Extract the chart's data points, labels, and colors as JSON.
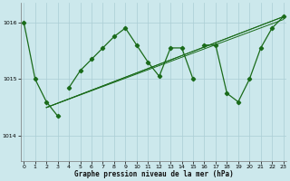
{
  "title": "Graphe pression niveau de la mer (hPa)",
  "bg_color": "#cce8ec",
  "grid_color": "#aacdd4",
  "line_color": "#1a6b1a",
  "x_ticks": [
    0,
    1,
    2,
    3,
    4,
    5,
    6,
    7,
    8,
    9,
    10,
    11,
    12,
    13,
    14,
    15,
    16,
    17,
    18,
    19,
    20,
    21,
    22,
    23
  ],
  "y_ticks": [
    1014,
    1015,
    1016
  ],
  "ylim": [
    1013.55,
    1016.35
  ],
  "xlim": [
    -0.3,
    23.3
  ],
  "main_series": {
    "segments": [
      {
        "x": [
          0,
          1,
          2,
          3
        ],
        "y": [
          1016.0,
          1015.0,
          1014.6,
          1014.35
        ]
      },
      {
        "x": [
          4,
          5,
          6,
          7,
          8,
          9,
          10,
          11,
          12,
          13,
          14,
          15
        ],
        "y": [
          1014.85,
          1015.15,
          1015.35,
          1015.55,
          1015.75,
          1015.9,
          1015.6,
          1015.3,
          1015.05,
          1015.55,
          1015.55,
          1015.0
        ]
      },
      {
        "x": [
          16,
          17,
          18,
          19,
          20,
          21,
          22,
          23
        ],
        "y": [
          1015.6,
          1015.6,
          1014.75,
          1014.6,
          1015.0,
          1015.55,
          1015.9,
          1016.1
        ]
      }
    ]
  },
  "flat_lines": [
    {
      "x": [
        2,
        23
      ],
      "y": [
        1014.5,
        1016.05
      ]
    },
    {
      "x": [
        2,
        23
      ],
      "y": [
        1014.5,
        1016.1
      ]
    },
    {
      "x": [
        2,
        23
      ],
      "y": [
        1014.5,
        1016.1
      ]
    }
  ]
}
